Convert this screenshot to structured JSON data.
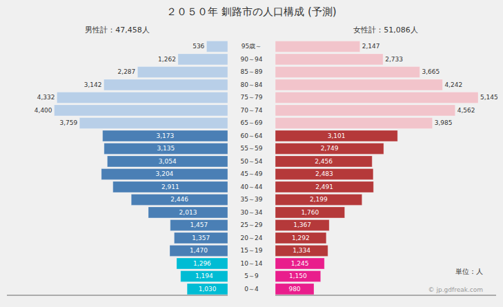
{
  "chart_data": {
    "type": "bar",
    "orientation": "horizontal",
    "title": "２０５０年 釧路市の人口構成 (予測)",
    "annotations": [
      "男性計：47,458人",
      "女性計：51,086人",
      "単位：人",
      "© jp.gdfreak.com"
    ],
    "categories": [
      "95歳～",
      "90～94",
      "85～89",
      "80～84",
      "75～79",
      "70～74",
      "65～69",
      "60～64",
      "55～59",
      "50～54",
      "45～49",
      "40～44",
      "35～39",
      "30～34",
      "25～29",
      "20～24",
      "15～19",
      "10～14",
      "5～9",
      "0～4"
    ],
    "series": [
      {
        "colors": [
          "#b8cfe8",
          "#b8cfe8",
          "#b8cfe8",
          "#b8cfe8",
          "#b8cfe8",
          "#b8cfe8",
          "#b8cfe8",
          "#4a7fb5",
          "#4a7fb5",
          "#4a7fb5",
          "#4a7fb5",
          "#4a7fb5",
          "#4a7fb5",
          "#4a7fb5",
          "#4a7fb5",
          "#4a7fb5",
          "#4a7fb5",
          "#00bcd4",
          "#00bcd4",
          "#00bcd4"
        ],
        "values": [
          536,
          1262,
          2287,
          3142,
          4332,
          4400,
          3759,
          3173,
          3135,
          3054,
          3204,
          2911,
          2446,
          2013,
          1457,
          1357,
          1470,
          1296,
          1194,
          1030
        ],
        "value_labels": [
          "536",
          "1,262",
          "2,287",
          "3,142",
          "4,332",
          "4,400",
          "3,759",
          "3,173",
          "3,135",
          "3,054",
          "3,204",
          "2,911",
          "2,446",
          "2,013",
          "1,457",
          "1,357",
          "1,470",
          "1,296",
          "1,194",
          "1,030"
        ]
      },
      {
        "colors": [
          "#f2c4cb",
          "#f2c4cb",
          "#f2c4cb",
          "#f2c4cb",
          "#f2c4cb",
          "#f2c4cb",
          "#f2c4cb",
          "#b5393a",
          "#b5393a",
          "#b5393a",
          "#b5393a",
          "#b5393a",
          "#b5393a",
          "#b5393a",
          "#b5393a",
          "#b5393a",
          "#b5393a",
          "#e91e8c",
          "#e91e8c",
          "#e91e8c"
        ],
        "values": [
          2147,
          2733,
          3665,
          4242,
          5145,
          4562,
          3985,
          3101,
          2749,
          2456,
          2483,
          2491,
          2199,
          1760,
          1367,
          1292,
          1334,
          1245,
          1150,
          980
        ],
        "value_labels": [
          "2,147",
          "2,733",
          "3,665",
          "4,242",
          "5,145",
          "4,562",
          "3,985",
          "3,101",
          "2,749",
          "2,456",
          "2,483",
          "2,491",
          "2,199",
          "1,760",
          "1,367",
          "1,292",
          "1,334",
          "1,245",
          "1,150",
          "980"
        ]
      }
    ],
    "xlim": [
      0,
      5600
    ],
    "data_labels": true,
    "tick_labels": "y",
    "grid": false
  }
}
